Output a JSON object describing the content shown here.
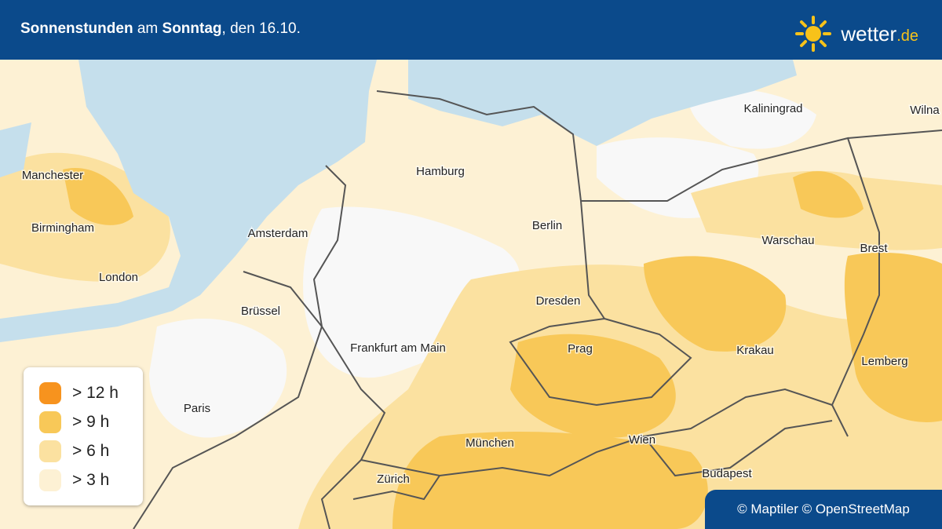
{
  "header": {
    "title_parts": [
      "Sonnenstunden",
      "am",
      "Sonntag",
      ", den 16.10."
    ],
    "logo": {
      "brand": "wetter",
      "suffix": ".de"
    }
  },
  "cities": [
    "Manchester",
    "Birmingham",
    "London",
    "Amsterdam",
    "Brüssel",
    "Paris",
    "Hamburg",
    "Berlin",
    "Dresden",
    "Frankfurt am Main",
    "Prag",
    "München",
    "Zürich",
    "Wien",
    "Budapest",
    "Krakau",
    "Warschau",
    "Kaliningrad",
    "Wilna",
    "Brest",
    "Lemberg"
  ],
  "legend": [
    {
      "label": "> 12 h",
      "color": "#f7931e"
    },
    {
      "label": "> 9 h",
      "color": "#f8c858"
    },
    {
      "label": "> 6 h",
      "color": "#fbe1a0"
    },
    {
      "label": "> 3 h",
      "color": "#fdf1d4"
    }
  ],
  "attribution": "© Maptiler © OpenStreetMap"
}
